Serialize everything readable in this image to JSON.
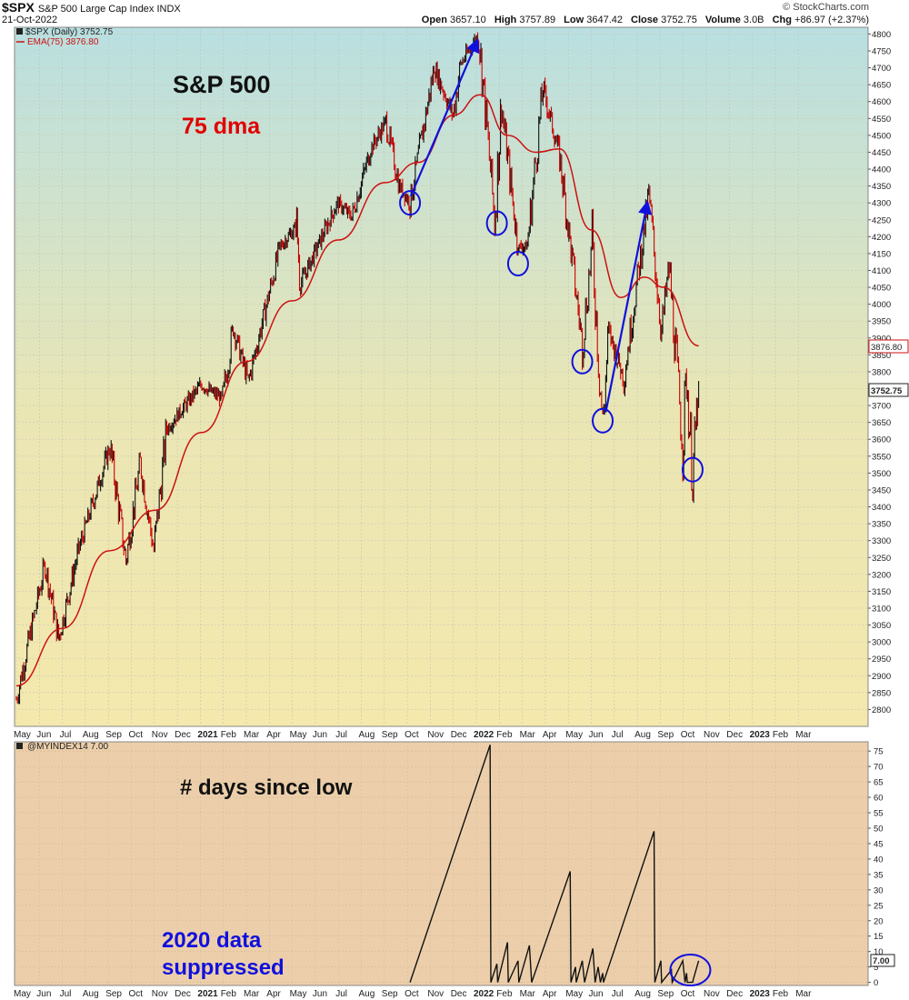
{
  "header": {
    "symbol": "$SPX",
    "description": "S&P 500 Large Cap Index  INDX",
    "date": "21-Oct-2022",
    "credit": "© StockCharts.com",
    "open_label": "Open",
    "open": "3657.10",
    "high_label": "High",
    "high": "3757.89",
    "low_label": "Low",
    "low": "3647.42",
    "close_label": "Close",
    "close": "3752.75",
    "volume_label": "Volume",
    "volume": "3.0B",
    "chg_label": "Chg",
    "chg": "+86.97 (+2.37%)"
  },
  "colors": {
    "price_up": "#111111",
    "price_down": "#cc0000",
    "ema": "#cc1111",
    "annotation_blue": "#1010dd",
    "top_panel_top": "#b9dfe1",
    "top_panel_bottom": "#f4e8ad",
    "bottom_panel": "#eccfaa"
  },
  "chart_data": [
    {
      "type": "line",
      "panel": "price",
      "legend": [
        "$SPX (Daily) 3752.75",
        "EMA(75) 3876.80"
      ],
      "annotations": [
        "S&P 500",
        "75 dma"
      ],
      "last_price_tag": "3752.75",
      "last_ema_tag": "3876.80",
      "ylim": [
        2750,
        4820
      ],
      "yticks": [
        2800,
        2850,
        2900,
        2950,
        3000,
        3050,
        3100,
        3150,
        3200,
        3250,
        3300,
        3350,
        3400,
        3450,
        3500,
        3550,
        3600,
        3650,
        3700,
        3750,
        3800,
        3850,
        3900,
        3950,
        4000,
        4050,
        4100,
        4150,
        4200,
        4250,
        4300,
        4350,
        4400,
        4450,
        4500,
        4550,
        4600,
        4650,
        4700,
        4750,
        4800
      ],
      "x_labels": [
        "May",
        "Jun",
        "Jul",
        "Aug",
        "Sep",
        "Oct",
        "Nov",
        "Dec",
        "2021",
        "Feb",
        "Mar",
        "Apr",
        "May",
        "Jun",
        "Jul",
        "Aug",
        "Sep",
        "Oct",
        "Nov",
        "Dec",
        "2022",
        "Feb",
        "Mar",
        "Apr",
        "May",
        "Jun",
        "Jul",
        "Aug",
        "Sep",
        "Oct",
        "Nov",
        "Dec",
        "2023",
        "Feb",
        "Mar"
      ],
      "x_start_month": "2020-05",
      "series": [
        {
          "name": "$SPX (Daily)",
          "x": [
            "2020-05-01",
            "2020-06-08",
            "2020-06-26",
            "2020-07-22",
            "2020-09-02",
            "2020-09-23",
            "2020-10-12",
            "2020-10-30",
            "2020-11-16",
            "2020-12-31",
            "2021-01-29",
            "2021-02-12",
            "2021-03-04",
            "2021-04-15",
            "2021-05-07",
            "2021-05-12",
            "2021-06-30",
            "2021-07-19",
            "2021-08-13",
            "2021-09-02",
            "2021-09-20",
            "2021-10-04",
            "2021-11-05",
            "2021-11-30",
            "2021-12-10",
            "2022-01-03",
            "2022-01-24",
            "2022-02-02",
            "2022-02-24",
            "2022-03-08",
            "2022-03-29",
            "2022-04-20",
            "2022-05-20",
            "2022-06-02",
            "2022-06-16",
            "2022-06-24",
            "2022-07-14",
            "2022-08-16",
            "2022-09-02",
            "2022-09-12",
            "2022-09-30",
            "2022-10-05",
            "2022-10-13",
            "2022-10-21"
          ],
          "y": [
            2830,
            3230,
            3010,
            3270,
            3580,
            3240,
            3530,
            3270,
            3630,
            3760,
            3720,
            3930,
            3770,
            4170,
            4230,
            4060,
            4300,
            4260,
            4460,
            4540,
            4350,
            4300,
            4700,
            4560,
            4710,
            4800,
            4250,
            4590,
            4170,
            4170,
            4640,
            4440,
            3880,
            4180,
            3640,
            3920,
            3780,
            4320,
            3920,
            4110,
            3580,
            3790,
            3490,
            3752.75
          ]
        },
        {
          "name": "EMA(75)",
          "x": [
            "2020-05-01",
            "2020-07-01",
            "2020-09-01",
            "2020-11-01",
            "2021-01-01",
            "2021-03-01",
            "2021-05-01",
            "2021-07-01",
            "2021-09-01",
            "2021-10-15",
            "2021-12-01",
            "2022-01-05",
            "2022-02-10",
            "2022-03-20",
            "2022-04-20",
            "2022-06-01",
            "2022-07-10",
            "2022-08-10",
            "2022-09-05",
            "2022-10-21"
          ],
          "y": [
            2870,
            3040,
            3270,
            3390,
            3620,
            3830,
            4010,
            4190,
            4360,
            4420,
            4560,
            4620,
            4500,
            4450,
            4460,
            4220,
            4020,
            4080,
            4050,
            3876.8
          ]
        }
      ],
      "trend_arrows": [
        {
          "from": [
            "2021-10-05",
            4320
          ],
          "to": [
            "2022-01-01",
            4780
          ]
        },
        {
          "from": [
            "2022-06-20",
            3680
          ],
          "to": [
            "2022-08-14",
            4300
          ]
        }
      ],
      "circled_lows": [
        {
          "x": "2021-10-04",
          "y": 4300
        },
        {
          "x": "2022-01-27",
          "y": 4240
        },
        {
          "x": "2022-02-24",
          "y": 4120
        },
        {
          "x": "2022-05-20",
          "y": 3830
        },
        {
          "x": "2022-06-16",
          "y": 3655
        },
        {
          "x": "2022-10-13",
          "y": 3510
        }
      ]
    },
    {
      "type": "line",
      "panel": "indicator",
      "legend": [
        "@MYINDEX14 7.00"
      ],
      "annotations": [
        "# days since low",
        "2020 data",
        "suppressed"
      ],
      "last_value_tag": "7.00",
      "ylim": [
        -1,
        78
      ],
      "yticks": [
        0,
        5,
        10,
        15,
        20,
        25,
        30,
        35,
        40,
        45,
        50,
        55,
        60,
        65,
        70,
        75
      ],
      "x_labels": [
        "May",
        "Jun",
        "Jul",
        "Aug",
        "Sep",
        "Oct",
        "Nov",
        "Dec",
        "2021",
        "Feb",
        "Mar",
        "Apr",
        "May",
        "Jun",
        "Jul",
        "Aug",
        "Sep",
        "Oct",
        "Nov",
        "Dec",
        "2022",
        "Feb",
        "Mar",
        "Apr",
        "May",
        "Jun",
        "Jul",
        "Aug",
        "Sep",
        "Oct",
        "Nov",
        "Dec",
        "2023",
        "Feb",
        "Mar"
      ],
      "series": [
        {
          "name": "@MYINDEX14",
          "x": [
            "2021-10-04",
            "2022-01-18",
            "2022-01-19",
            "2022-01-27",
            "2022-01-28",
            "2022-02-10",
            "2022-02-11",
            "2022-02-24",
            "2022-02-25",
            "2022-03-11",
            "2022-03-14",
            "2022-05-04",
            "2022-05-05",
            "2022-05-11",
            "2022-05-12",
            "2022-05-20",
            "2022-05-23",
            "2022-06-03",
            "2022-06-06",
            "2022-06-10",
            "2022-06-13",
            "2022-06-16",
            "2022-06-17",
            "2022-08-23",
            "2022-08-24",
            "2022-09-01",
            "2022-09-02",
            "2022-09-15",
            "2022-09-16",
            "2022-09-30",
            "2022-10-03",
            "2022-10-05",
            "2022-10-06",
            "2022-10-13",
            "2022-10-14",
            "2022-10-21"
          ],
          "y": [
            0,
            77,
            0,
            6,
            0,
            13,
            0,
            7,
            0,
            12,
            0,
            36,
            0,
            5,
            0,
            7,
            0,
            11,
            0,
            5,
            0,
            3,
            0,
            49,
            0,
            7,
            0,
            4,
            0,
            7,
            0,
            3,
            0,
            0,
            1,
            7
          ]
        }
      ],
      "circled_region": {
        "x": "2022-10-10",
        "y": 4
      }
    }
  ]
}
